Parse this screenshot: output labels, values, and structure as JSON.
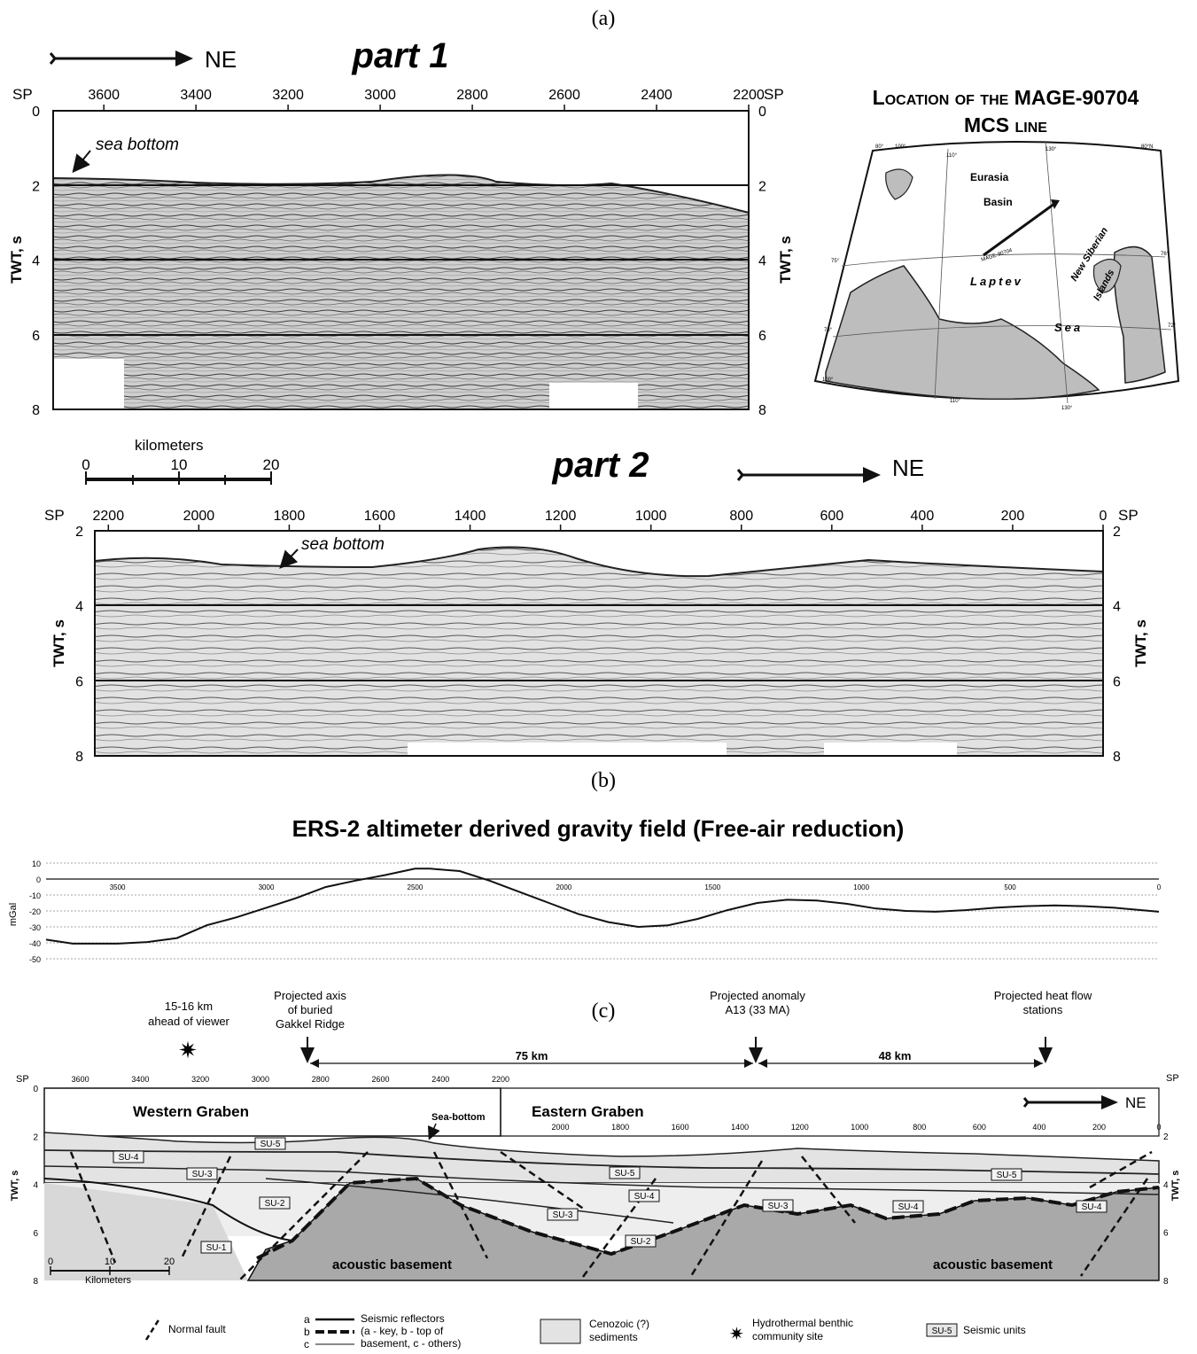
{
  "panels": {
    "a": {
      "label": "(a)"
    },
    "b": {
      "label": "(b)"
    },
    "c": {
      "label": "(c)"
    }
  },
  "direction_label": "NE",
  "sp_label": "SP",
  "twt_label": "TWT, s",
  "sea_bottom_label": "sea bottom",
  "seismic": {
    "part1": {
      "title": "part 1",
      "sp_ticks": [
        3600,
        3400,
        3200,
        3000,
        2800,
        2600,
        2400,
        2200
      ],
      "sp_range": [
        3710,
        2200
      ],
      "twt_ticks": [
        0,
        2,
        4,
        6,
        8
      ],
      "twt_range": [
        0,
        8
      ]
    },
    "part2": {
      "title": "part 2",
      "sp_ticks": [
        2200,
        2000,
        1800,
        1600,
        1400,
        1200,
        1000,
        800,
        600,
        400,
        200,
        0
      ],
      "sp_range": [
        2230,
        0
      ],
      "twt_ticks": [
        2,
        4,
        6,
        8
      ],
      "twt_range": [
        2,
        8
      ]
    },
    "scale_bar": {
      "title": "kilometers",
      "ticks": [
        0,
        10,
        20
      ]
    }
  },
  "location_map": {
    "title_line1": "Location of the MAGE-90704",
    "title_line2": "MCS line",
    "labels": {
      "eurasia": "Eurasia",
      "basin": "Basin",
      "laptev": "Laptev",
      "sea": "Sea",
      "new_siberian": "New Siberian",
      "islands": "Islands",
      "line_name": "MAGE-90704"
    },
    "graticule_labels": [
      "80°",
      "100°",
      "110°",
      "130°",
      "80°N",
      "75°",
      "76°",
      "73°",
      "72°",
      "110°",
      "130°",
      "100°"
    ]
  },
  "gravity": {
    "title": "ERS-2 altimeter derived gravity field (Free-air reduction)",
    "ylabel": "mGal"
  },
  "chart_data": {
    "type": "line",
    "title": "ERS-2 altimeter derived gravity field (Free-air reduction)",
    "xlabel": "",
    "ylabel": "mGal",
    "x_ticks": [
      3500,
      3000,
      2500,
      2000,
      1500,
      1000,
      500,
      0
    ],
    "y_ticks": [
      10,
      0,
      -10,
      -20,
      -30,
      -40,
      -50
    ],
    "xlim": [
      3740,
      0
    ],
    "ylim": [
      -50,
      10
    ],
    "grid": true,
    "series": [
      {
        "x": [
          3740,
          3650,
          3500,
          3400,
          3300,
          3200,
          3100,
          3000,
          2900,
          2800,
          2700,
          2600,
          2500,
          2450,
          2350,
          2250,
          2150,
          2050,
          1950,
          1850,
          1750,
          1650,
          1550,
          1450,
          1350,
          1250,
          1150,
          1050,
          950,
          850,
          750,
          650,
          550,
          450,
          350,
          250,
          150,
          0
        ],
        "y": [
          -38,
          -40.5,
          -40.5,
          -39.5,
          -37,
          -29,
          -24,
          -18,
          -12,
          -5,
          -1,
          2.5,
          6.5,
          6.5,
          5,
          -1,
          -8,
          -15,
          -22,
          -27,
          -30,
          -29,
          -25,
          -19.5,
          -15,
          -13,
          -13.5,
          -15.5,
          -18.5,
          -20,
          -20.5,
          -19.5,
          -18,
          -17,
          -16.5,
          -17,
          -18,
          -20.5
        ]
      }
    ]
  },
  "interpretation": {
    "annotations": {
      "hydrothermal": [
        "15-16 km",
        "ahead of viewer"
      ],
      "gakkel": [
        "Projected axis",
        "of buried",
        "Gakkel Ridge"
      ],
      "anomaly": [
        "Projected anomaly",
        "A13 (33 MA)"
      ],
      "heatflow": [
        "Projected heat flow",
        "stations"
      ]
    },
    "distances": [
      "75 km",
      "48 km"
    ],
    "sp_ticks_west": [
      3600,
      3400,
      3200,
      3000,
      2800,
      2600,
      2400,
      2200
    ],
    "sp_ticks_east": [
      2000,
      1800,
      1600,
      1400,
      1200,
      1000,
      800,
      600,
      400,
      200,
      0
    ],
    "twt_ticks_left": [
      0,
      2,
      4,
      6,
      8
    ],
    "twt_ticks_right": [
      2,
      4,
      6,
      8
    ],
    "western_graben": "Western Graben",
    "eastern_graben": "Eastern Graben",
    "sea_bottom": "Sea-bottom",
    "acoustic_basement": "acoustic basement",
    "unit_labels": [
      "SU-4",
      "SU-5",
      "SU-3",
      "SU-2",
      "SU-1",
      "SU-5",
      "SU-4",
      "SU-3",
      "SU-2",
      "SU-3",
      "SU-5",
      "SU-4",
      "SU-4"
    ],
    "scale_ticks": [
      0,
      10,
      20
    ],
    "scale_title": "Kilometers"
  },
  "legend": {
    "fault": "Normal fault",
    "reflector_letters": [
      "a",
      "b",
      "c"
    ],
    "reflector_text": [
      "Seismic reflectors",
      "(a - key, b - top of",
      "basement, c - others)"
    ],
    "sediments": [
      "Cenozoic (?)",
      "sediments"
    ],
    "hydrothermal": [
      "Hydrothermal benthic",
      "community site"
    ],
    "unit_box": "SU-5",
    "units": "Seismic units"
  }
}
